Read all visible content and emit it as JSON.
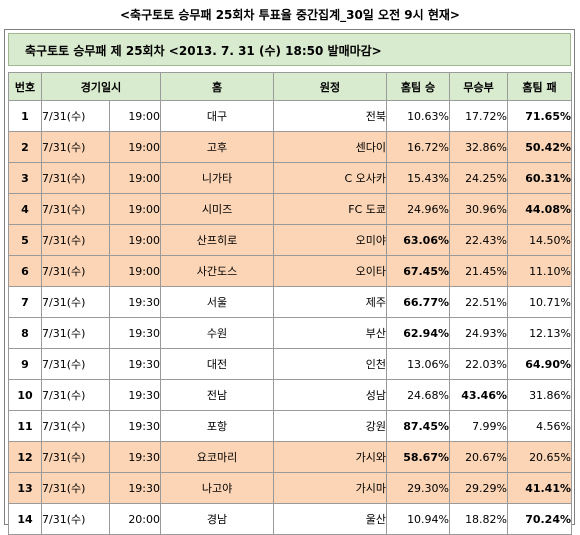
{
  "title": "<축구토토 승무패 25회차 투표율 중간집계_30일 오전 9시 현재>",
  "subtitle": "축구토토 승무패 제 25회차 <2013. 7. 31 (수) 18:50 발매마감>",
  "colors": {
    "header_green": "#d9ebcf",
    "row_peach": "#fbd5b5",
    "row_white": "#ffffff"
  },
  "headers": {
    "num": "번호",
    "datetime": "경기일시",
    "home": "홈",
    "away": "원정",
    "home_win": "홈팀 승",
    "draw": "무승부",
    "home_loss": "홈팀 패"
  },
  "rows": [
    {
      "num": "1",
      "date": "7/31(수)",
      "time": "19:00",
      "home": "대구",
      "away": "전북",
      "win": "10.63%",
      "draw": "17.72%",
      "loss": "71.65%",
      "shade": "white",
      "bold": "loss"
    },
    {
      "num": "2",
      "date": "7/31(수)",
      "time": "19:00",
      "home": "고후",
      "away": "센다이",
      "win": "16.72%",
      "draw": "32.86%",
      "loss": "50.42%",
      "shade": "peach",
      "bold": "loss"
    },
    {
      "num": "3",
      "date": "7/31(수)",
      "time": "19:00",
      "home": "니가타",
      "away": "C 오사카",
      "win": "15.43%",
      "draw": "24.25%",
      "loss": "60.31%",
      "shade": "peach",
      "bold": "loss"
    },
    {
      "num": "4",
      "date": "7/31(수)",
      "time": "19:00",
      "home": "시미즈",
      "away": "FC 도쿄",
      "win": "24.96%",
      "draw": "30.96%",
      "loss": "44.08%",
      "shade": "peach",
      "bold": "loss"
    },
    {
      "num": "5",
      "date": "7/31(수)",
      "time": "19:00",
      "home": "산프히로",
      "away": "오미야",
      "win": "63.06%",
      "draw": "22.43%",
      "loss": "14.50%",
      "shade": "peach",
      "bold": "win"
    },
    {
      "num": "6",
      "date": "7/31(수)",
      "time": "19:00",
      "home": "사간도스",
      "away": "오이타",
      "win": "67.45%",
      "draw": "21.45%",
      "loss": "11.10%",
      "shade": "peach",
      "bold": "win"
    },
    {
      "num": "7",
      "date": "7/31(수)",
      "time": "19:30",
      "home": "서울",
      "away": "제주",
      "win": "66.77%",
      "draw": "22.51%",
      "loss": "10.71%",
      "shade": "white",
      "bold": "win"
    },
    {
      "num": "8",
      "date": "7/31(수)",
      "time": "19:30",
      "home": "수원",
      "away": "부산",
      "win": "62.94%",
      "draw": "24.93%",
      "loss": "12.13%",
      "shade": "white",
      "bold": "win"
    },
    {
      "num": "9",
      "date": "7/31(수)",
      "time": "19:30",
      "home": "대전",
      "away": "인천",
      "win": "13.06%",
      "draw": "22.03%",
      "loss": "64.90%",
      "shade": "white",
      "bold": "loss"
    },
    {
      "num": "10",
      "date": "7/31(수)",
      "time": "19:30",
      "home": "전남",
      "away": "성남",
      "win": "24.68%",
      "draw": "43.46%",
      "loss": "31.86%",
      "shade": "white",
      "bold": "draw"
    },
    {
      "num": "11",
      "date": "7/31(수)",
      "time": "19:30",
      "home": "포항",
      "away": "강원",
      "win": "87.45%",
      "draw": "7.99%",
      "loss": "4.56%",
      "shade": "white",
      "bold": "win"
    },
    {
      "num": "12",
      "date": "7/31(수)",
      "time": "19:30",
      "home": "요코마리",
      "away": "가시와",
      "win": "58.67%",
      "draw": "20.67%",
      "loss": "20.65%",
      "shade": "peach",
      "bold": "win"
    },
    {
      "num": "13",
      "date": "7/31(수)",
      "time": "19:30",
      "home": "나고야",
      "away": "가시마",
      "win": "29.30%",
      "draw": "29.29%",
      "loss": "41.41%",
      "shade": "peach",
      "bold": "loss"
    },
    {
      "num": "14",
      "date": "7/31(수)",
      "time": "20:00",
      "home": "경남",
      "away": "울산",
      "win": "10.94%",
      "draw": "18.82%",
      "loss": "70.24%",
      "shade": "white",
      "bold": "loss"
    }
  ]
}
